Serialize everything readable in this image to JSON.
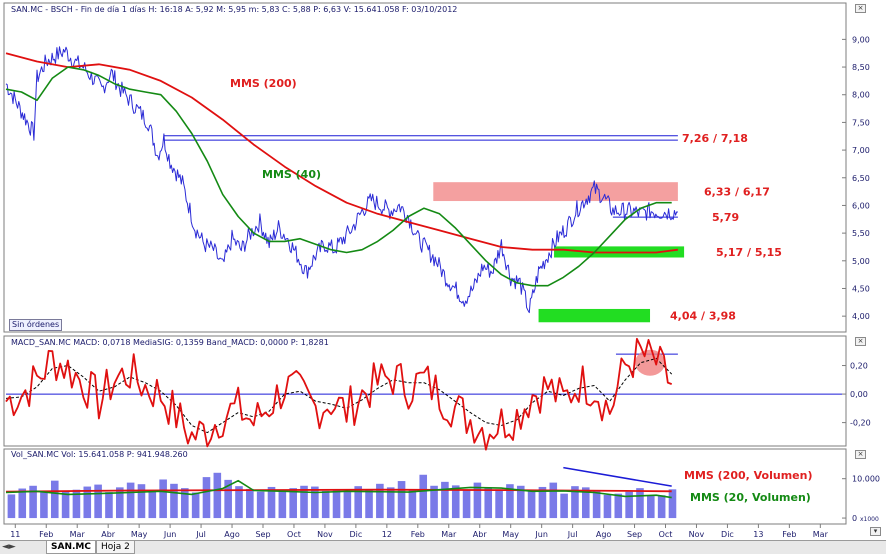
{
  "window": {
    "price_header": "SAN.MC - BSCH - Fin de día 1 días  H: 16:18  A: 5,92  M: 5,95  m: 5,83  C: 5,88  P: 6,63  V: 15.641.058  F: 03/10/2012",
    "macd_header": "MACD_SAN.MC  MACD: 0,0718  MediaSIG: 0,1359  Band_MACD: 0,0000  P: 1,8281",
    "vol_header": "Vol_SAN.MC  Vol: 15.641.058  P: 941.948.260",
    "orders_button": "Sin órdenes",
    "tabs": [
      {
        "label": "SAN.MC",
        "active": true
      },
      {
        "label": "Hoja 2",
        "active": false
      }
    ]
  },
  "chart_data": [
    {
      "type": "line",
      "name": "price",
      "x_tick_labels": [
        "11",
        "Feb",
        "Mar",
        "Abr",
        "May",
        "Jun",
        "Jul",
        "Ago",
        "Sep",
        "Oct",
        "Nov",
        "Dic",
        "12",
        "Feb",
        "Mar",
        "Abr",
        "May",
        "Jun",
        "Jul",
        "Ago",
        "Sep",
        "Oct",
        "Nov",
        "Dic",
        "13",
        "Feb",
        "Mar"
      ],
      "y_ticks": [
        4.0,
        4.5,
        5.0,
        5.5,
        6.0,
        6.5,
        7.0,
        7.5,
        8.0,
        8.5,
        9.0
      ],
      "y_tick_labels": [
        "4,00",
        "4,50",
        "5,00",
        "5,50",
        "6,00",
        "6,50",
        "7,00",
        "7,50",
        "8,00",
        "8,50",
        "9,00"
      ],
      "ylim": [
        3.75,
        9.35
      ],
      "xlim": [
        0,
        27
      ],
      "grid": false,
      "price_series": {
        "x": [
          0.0,
          0.3,
          0.6,
          0.9,
          1.0,
          1.3,
          1.6,
          1.9,
          2.2,
          2.5,
          2.8,
          3.1,
          3.4,
          3.7,
          4.0,
          4.3,
          4.6,
          4.9,
          5.1,
          5.3,
          5.5,
          5.7,
          5.9,
          6.1,
          6.4,
          6.7,
          7.0,
          7.3,
          7.6,
          7.9,
          8.2,
          8.5,
          8.8,
          9.1,
          9.4,
          9.7,
          10.0,
          10.3,
          10.6,
          10.9,
          11.2,
          11.5,
          11.8,
          12.1,
          12.4,
          12.7,
          13.0,
          13.3,
          13.6,
          13.9,
          14.2,
          14.5,
          14.8,
          15.1,
          15.4,
          15.7,
          16.0,
          16.3,
          16.6,
          16.9,
          17.2,
          17.5,
          17.8,
          18.1,
          18.4,
          18.7,
          19.0,
          19.3,
          19.6,
          19.9,
          20.2,
          20.5,
          20.8,
          21.1,
          21.4,
          21.7
        ],
        "y": [
          8.2,
          7.9,
          7.6,
          7.3,
          8.3,
          8.6,
          8.7,
          8.8,
          8.6,
          8.5,
          8.3,
          8.1,
          8.4,
          8.1,
          7.9,
          7.7,
          7.5,
          6.9,
          7.2,
          6.8,
          6.6,
          6.4,
          6.0,
          5.6,
          5.3,
          5.2,
          4.9,
          5.4,
          5.2,
          5.5,
          5.7,
          5.3,
          5.6,
          5.4,
          5.1,
          4.8,
          5.1,
          5.3,
          5.2,
          5.4,
          5.6,
          5.9,
          6.1,
          6.0,
          5.9,
          6.0,
          5.8,
          5.4,
          5.2,
          5.0,
          4.7,
          4.5,
          4.3,
          4.5,
          4.9,
          4.8,
          5.3,
          4.7,
          4.6,
          4.1,
          4.8,
          5.1,
          5.4,
          5.6,
          5.9,
          6.1,
          6.3,
          6.15,
          5.9,
          5.9,
          5.9,
          5.85,
          5.9,
          5.88,
          5.88,
          5.88
        ]
      },
      "mms40": {
        "name": "MMS (40)",
        "x": [
          0.0,
          0.5,
          1.0,
          1.5,
          2.0,
          2.5,
          3.0,
          3.5,
          4.0,
          4.5,
          5.0,
          5.5,
          6.0,
          6.5,
          7.0,
          7.5,
          8.0,
          8.5,
          9.0,
          9.5,
          10.0,
          10.5,
          11.0,
          11.5,
          12.0,
          12.5,
          13.0,
          13.5,
          14.0,
          14.5,
          15.0,
          15.5,
          16.0,
          16.5,
          17.0,
          17.5,
          18.0,
          18.5,
          19.0,
          19.5,
          20.0,
          20.5,
          21.0,
          21.5
        ],
        "y": [
          8.1,
          8.05,
          7.9,
          8.3,
          8.5,
          8.45,
          8.35,
          8.2,
          8.1,
          8.05,
          8.0,
          7.7,
          7.3,
          6.8,
          6.2,
          5.8,
          5.5,
          5.35,
          5.35,
          5.4,
          5.3,
          5.2,
          5.15,
          5.2,
          5.35,
          5.55,
          5.8,
          5.95,
          5.85,
          5.6,
          5.3,
          5.0,
          4.75,
          4.6,
          4.55,
          4.55,
          4.7,
          4.9,
          5.15,
          5.45,
          5.75,
          5.95,
          6.05,
          6.05
        ]
      },
      "mms200": {
        "name": "MMS (200)",
        "x": [
          0.0,
          1.0,
          2.0,
          3.0,
          4.0,
          5.0,
          6.0,
          7.0,
          8.0,
          9.0,
          10.0,
          11.0,
          12.0,
          13.0,
          14.0,
          15.0,
          16.0,
          17.0,
          18.0,
          19.0,
          20.0,
          21.0,
          21.7
        ],
        "y": [
          8.75,
          8.6,
          8.5,
          8.55,
          8.45,
          8.25,
          7.95,
          7.55,
          7.1,
          6.7,
          6.35,
          6.05,
          5.85,
          5.7,
          5.55,
          5.4,
          5.25,
          5.2,
          5.2,
          5.15,
          5.15,
          5.15,
          5.2
        ]
      },
      "annotations": [
        {
          "label": "7,26 / 7,18",
          "value_top": 7.26,
          "value_bottom": 7.18,
          "x_start": 5.1,
          "x_end": 21.7,
          "color": "#1b1bd6"
        },
        {
          "label": "6,33 / 6,17",
          "value_top": 6.33,
          "value_bottom": 6.17,
          "x_start": 13.8,
          "x_end": 21.7,
          "color": "#f08080",
          "style": "band"
        },
        {
          "label": "5,79",
          "value_top": 5.79,
          "x_start": 19.6,
          "x_end": 21.7,
          "color": "#1b1bd6"
        },
        {
          "label": "5,17 / 5,15",
          "value_top": 5.17,
          "value_bottom": 5.15,
          "x_start": 17.7,
          "x_end": 21.9,
          "color": "#22dd22",
          "style": "band"
        },
        {
          "label": "4,04 / 3,98",
          "value_top": 4.04,
          "value_bottom": 3.98,
          "x_start": 17.2,
          "x_end": 20.8,
          "color": "#22dd22",
          "style": "band"
        }
      ]
    },
    {
      "type": "line",
      "name": "macd",
      "y_ticks": [
        -0.2,
        0.0,
        0.2
      ],
      "y_tick_labels": [
        "-0,20",
        "0,00",
        "0,20"
      ],
      "ylim": [
        -0.35,
        0.33
      ],
      "zero_line": 0.0,
      "macd_series": {
        "x": [
          0.0,
          0.5,
          1.0,
          1.5,
          2.0,
          2.5,
          3.0,
          3.5,
          4.0,
          4.5,
          5.0,
          5.5,
          6.0,
          6.5,
          7.0,
          7.5,
          8.0,
          8.5,
          9.0,
          9.5,
          10.0,
          10.5,
          11.0,
          11.5,
          12.0,
          12.5,
          13.0,
          13.5,
          14.0,
          14.5,
          15.0,
          15.5,
          16.0,
          16.5,
          17.0,
          17.5,
          18.0,
          18.5,
          19.0,
          19.5,
          20.0,
          20.5,
          21.0,
          21.5
        ],
        "y": [
          -0.05,
          0.0,
          0.1,
          0.25,
          0.18,
          0.08,
          -0.05,
          0.1,
          0.15,
          0.05,
          0.0,
          -0.15,
          -0.3,
          -0.25,
          -0.15,
          -0.1,
          -0.2,
          -0.08,
          0.05,
          0.0,
          -0.1,
          -0.05,
          -0.12,
          0.0,
          0.08,
          0.12,
          0.05,
          0.1,
          0.0,
          -0.1,
          -0.18,
          -0.25,
          -0.2,
          -0.15,
          0.0,
          0.05,
          -0.05,
          0.08,
          0.05,
          -0.12,
          0.2,
          0.28,
          0.22,
          0.07
        ]
      },
      "signal_series": {
        "x": [
          0.0,
          0.5,
          1.0,
          1.5,
          2.0,
          2.5,
          3.0,
          3.5,
          4.0,
          4.5,
          5.0,
          5.5,
          6.0,
          6.5,
          7.0,
          7.5,
          8.0,
          8.5,
          9.0,
          9.5,
          10.0,
          10.5,
          11.0,
          11.5,
          12.0,
          12.5,
          13.0,
          13.5,
          14.0,
          14.5,
          15.0,
          15.5,
          16.0,
          16.5,
          17.0,
          17.5,
          18.0,
          18.5,
          19.0,
          19.5,
          20.0,
          20.5,
          21.0,
          21.5
        ],
        "y": [
          -0.03,
          -0.02,
          0.05,
          0.18,
          0.2,
          0.12,
          0.02,
          0.05,
          0.12,
          0.08,
          0.02,
          -0.08,
          -0.22,
          -0.27,
          -0.2,
          -0.13,
          -0.16,
          -0.12,
          0.0,
          0.02,
          -0.05,
          -0.07,
          -0.1,
          -0.04,
          0.04,
          0.1,
          0.08,
          0.08,
          0.03,
          -0.05,
          -0.13,
          -0.2,
          -0.22,
          -0.18,
          -0.06,
          0.02,
          -0.01,
          0.04,
          0.06,
          -0.05,
          0.1,
          0.22,
          0.25,
          0.14
        ]
      },
      "annotation_line": {
        "value": 0.28,
        "x_start": 19.7,
        "x_end": 21.7
      }
    },
    {
      "type": "bar",
      "name": "volume",
      "y_ticks": [
        0,
        10000
      ],
      "y_tick_labels": [
        "0",
        "10.000"
      ],
      "ylim": [
        -1000,
        15000
      ],
      "unit_label": "x1000",
      "bar_values_k": [
        6000,
        7500,
        8200,
        6800,
        9500,
        7000,
        7200,
        8000,
        8500,
        6600,
        7800,
        9000,
        8600,
        7100,
        9800,
        8700,
        7600,
        6500,
        10400,
        11500,
        9700,
        8100,
        7400,
        6700,
        7900,
        6800,
        7600,
        8200,
        8000,
        6900,
        7200,
        6600,
        8100,
        7300,
        8700,
        7800,
        9400,
        7000,
        11000,
        8200,
        9200,
        8300,
        7100,
        9000,
        7800,
        7300,
        8600,
        8200,
        6800,
        7900,
        9000,
        6200,
        8100,
        7800,
        6800,
        5900,
        6200,
        6700,
        7600,
        5600,
        5800,
        7300
      ],
      "mms20": {
        "name": "MMS (20, Volumen)",
        "x": [
          0.0,
          1.0,
          2.0,
          3.0,
          4.0,
          5.0,
          6.0,
          7.0,
          7.5,
          8.0,
          9.0,
          10.0,
          11.0,
          12.0,
          13.0,
          14.0,
          15.0,
          16.0,
          17.0,
          18.0,
          19.0,
          20.0,
          21.0,
          21.5
        ],
        "y": [
          6500,
          6800,
          6000,
          6200,
          6500,
          6800,
          6000,
          7500,
          9500,
          7000,
          6800,
          6500,
          6800,
          6700,
          6600,
          7200,
          7800,
          7600,
          6800,
          6900,
          6500,
          5500,
          5800,
          5200
        ]
      },
      "mms200": {
        "name": "MMS (200, Volumen)",
        "x": [
          0.0,
          4.0,
          8.0,
          12.0,
          16.0,
          20.0,
          21.5
        ],
        "y": [
          6700,
          7000,
          7100,
          7200,
          7100,
          6900,
          6800
        ]
      },
      "trendline": {
        "x": [
          18.0,
          21.5
        ],
        "y": [
          12800,
          8100
        ]
      }
    }
  ],
  "labels": {
    "mms200_price": "MMS (200)",
    "mms40_price": "MMS (40)",
    "vol_mms200": "MMS (200, Volumen)",
    "vol_mms20": "MMS (20, Volumen)"
  },
  "colors": {
    "price": "#2b2bd6",
    "mms200": "#e01010",
    "mms40": "#148a14",
    "annotation_blue": "#1b1bd6",
    "band_red": "#f08080",
    "band_green": "#22dd22",
    "label_red": "#e02020",
    "label_green": "#148a14",
    "volume_bar": "#7a7ae8"
  }
}
